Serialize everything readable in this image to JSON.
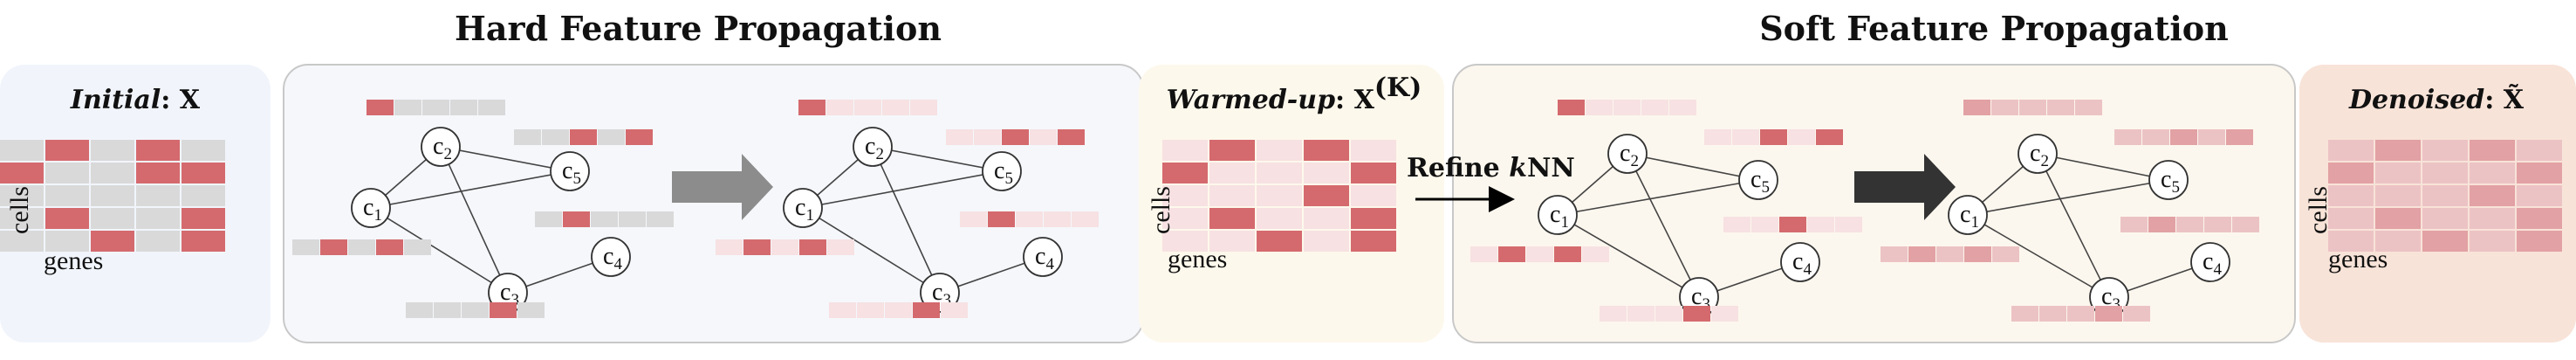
{
  "titles": {
    "hard": "Hard Feature Propagation",
    "soft": "Soft Feature Propagation"
  },
  "matrices": {
    "initial": {
      "label_italic": "Initial",
      "label_rest": ": X",
      "rows_label": "cells",
      "cols_label": "genes"
    },
    "warmed": {
      "label_italic": "Warmed-up",
      "label_rest": ": X",
      "superscript": "(K)",
      "rows_label": "cells",
      "cols_label": "genes"
    },
    "denoised": {
      "label_italic": "Denoised",
      "label_rest": ": X̃",
      "rows_label": "cells",
      "cols_label": "genes"
    }
  },
  "arrow_label": {
    "text": "Refine ",
    "italic": "k",
    "suffix": "NN"
  },
  "nodes": [
    {
      "main": "c",
      "sub": "1"
    },
    {
      "main": "c",
      "sub": "2"
    },
    {
      "main": "c",
      "sub": "3"
    },
    {
      "main": "c",
      "sub": "4"
    },
    {
      "main": "c",
      "sub": "5"
    }
  ],
  "colors": {
    "red": "#d46a6e",
    "gray": "#d9d9d9",
    "pink_dark": "#e2a1a4",
    "pink_mid": "#ecc3c5",
    "pink_light": "#f7e1e2",
    "hard_panel_bg": "#f5f7fb",
    "soft_panel_bg": "#fcf7ee",
    "initial_bg": "#f1f5fb",
    "warmed_bg": "#fdf8ec",
    "denoised_bg": "#f8e3d8"
  }
}
